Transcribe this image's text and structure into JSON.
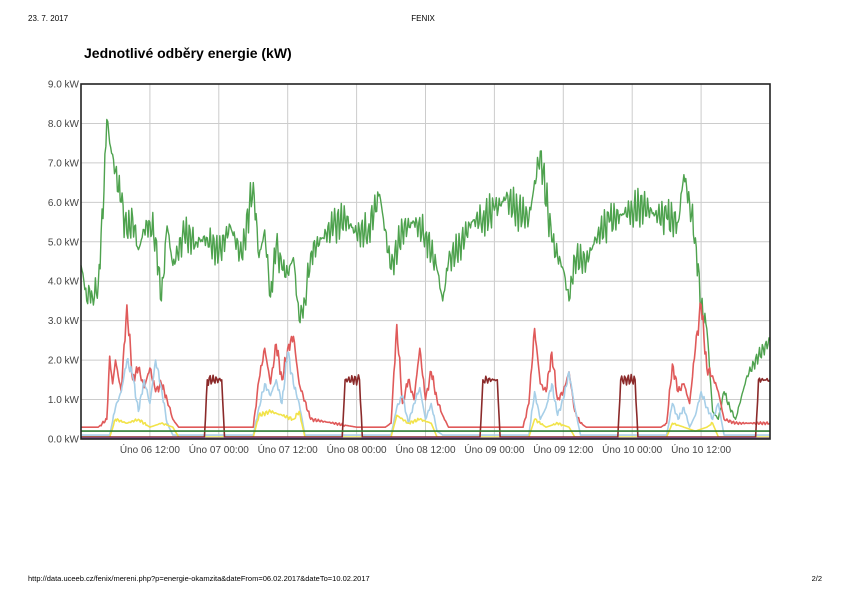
{
  "header": {
    "date": "23. 7. 2017",
    "title": "FENIX"
  },
  "footer": {
    "url": "http://data.uceeb.cz/fenix/mereni.php?p=energie-okamzita&dateFrom=06.02.2017&dateTo=10.02.2017",
    "page": "2/2"
  },
  "chart_data": {
    "type": "line",
    "title": "Jednotlivé odběry energie (kW)",
    "xlabel": "",
    "ylabel": "",
    "x_range_hours": [
      0,
      120
    ],
    "ylim": [
      0,
      9
    ],
    "y_ticks": [
      0,
      1,
      2,
      3,
      4,
      5,
      6,
      7,
      8,
      9
    ],
    "y_tick_labels": [
      "0.0 kW",
      "1.0 kW",
      "2.0 kW",
      "3.0 kW",
      "4.0 kW",
      "5.0 kW",
      "6.0 kW",
      "7.0 kW",
      "8.0 kW",
      "9.0 kW"
    ],
    "x_ticks": [
      {
        "x": 12,
        "label": "Úno 06 12:00"
      },
      {
        "x": 24,
        "label": "Úno 07 00:00"
      },
      {
        "x": 36,
        "label": "Úno 07 12:00"
      },
      {
        "x": 48,
        "label": "Úno 08 00:00"
      },
      {
        "x": 60,
        "label": "Úno 08 12:00"
      },
      {
        "x": 72,
        "label": "Úno 09 00:00"
      },
      {
        "x": 84,
        "label": "Úno 09 12:00"
      },
      {
        "x": 96,
        "label": "Úno 10 00:00"
      },
      {
        "x": 108,
        "label": "Úno 10 12:00"
      }
    ],
    "grid": true,
    "series": [
      {
        "color": "#4ea24e",
        "x": [
          0,
          0.5,
          1,
          1.5,
          2,
          3,
          4,
          4.5,
          5,
          6,
          7,
          8,
          9,
          10,
          11,
          12,
          13,
          14,
          15,
          16,
          18,
          20,
          22,
          24,
          26,
          28,
          30,
          31,
          32,
          33,
          34,
          35,
          36,
          37,
          38,
          39,
          40,
          42,
          44,
          46,
          48,
          50,
          52,
          54,
          56,
          58,
          60,
          62,
          63,
          64,
          66,
          68,
          70,
          72,
          74,
          76,
          78,
          80,
          82,
          84,
          85,
          86,
          88,
          90,
          92,
          94,
          96,
          98,
          100,
          102,
          104,
          105,
          106,
          107,
          108,
          109,
          110,
          111,
          112,
          113,
          114,
          116,
          118,
          120
        ],
        "y": [
          4.4,
          4.0,
          3.5,
          3.8,
          3.6,
          3.9,
          6.3,
          8.1,
          7.5,
          6.8,
          6.0,
          5.2,
          5.6,
          4.8,
          5.3,
          5.5,
          5.1,
          3.5,
          5.4,
          4.4,
          5.2,
          5.0,
          5.1,
          4.7,
          5.4,
          4.6,
          6.5,
          4.6,
          5.3,
          3.6,
          4.9,
          4.3,
          4.2,
          4.6,
          3.0,
          3.5,
          4.7,
          5.1,
          5.4,
          5.6,
          5.2,
          5.3,
          6.2,
          4.3,
          5.3,
          5.5,
          5.2,
          4.3,
          3.5,
          4.5,
          4.9,
          5.5,
          5.6,
          5.8,
          6.1,
          5.8,
          5.6,
          7.3,
          5.0,
          4.3,
          3.5,
          4.6,
          4.5,
          5.2,
          5.5,
          5.7,
          5.8,
          5.9,
          5.7,
          5.6,
          5.5,
          6.7,
          6.0,
          5.1,
          3.4,
          2.8,
          0.7,
          0.5,
          1.2,
          0.8,
          0.5,
          1.6,
          2.1,
          2.5
        ]
      },
      {
        "color": "#e05a5a",
        "x": [
          0,
          3,
          4.5,
          5,
          5.5,
          6,
          7,
          8,
          9,
          10,
          11,
          12,
          13,
          14,
          15,
          16,
          17,
          18,
          24,
          30,
          31,
          32,
          33,
          34,
          35,
          36,
          37,
          38,
          40,
          48,
          53,
          54,
          55,
          56,
          57,
          58,
          59,
          60,
          61,
          62,
          63,
          64,
          72,
          77,
          78,
          79,
          80,
          81,
          82,
          83,
          84,
          85,
          86,
          87,
          88,
          96,
          101,
          102,
          103,
          104,
          105,
          106,
          107,
          108,
          109,
          110,
          111,
          112,
          114,
          120
        ],
        "y": [
          0.3,
          0.3,
          0.5,
          2.1,
          1.4,
          2.0,
          1.2,
          3.4,
          1.5,
          1.8,
          1.3,
          1.8,
          1.2,
          1.4,
          1.0,
          0.5,
          0.3,
          0.3,
          0.3,
          0.3,
          1.5,
          2.3,
          1.4,
          2.4,
          1.5,
          2.3,
          2.6,
          1.4,
          0.5,
          0.3,
          0.3,
          0.4,
          2.9,
          0.9,
          1.5,
          1.0,
          2.3,
          1.0,
          1.7,
          1.0,
          0.6,
          0.3,
          0.3,
          0.3,
          0.9,
          2.8,
          1.4,
          1.2,
          2.2,
          1.0,
          1.2,
          1.7,
          0.7,
          0.4,
          0.3,
          0.3,
          0.3,
          0.4,
          1.9,
          1.2,
          1.4,
          0.9,
          2.3,
          3.4,
          1.8,
          1.6,
          1.2,
          0.5,
          0.4,
          0.4
        ]
      },
      {
        "color": "#a7cfe8",
        "x": [
          0,
          5,
          6,
          7,
          8,
          9,
          10,
          11,
          12,
          13,
          14,
          15,
          16,
          17,
          18,
          30,
          31,
          32,
          33,
          34,
          35,
          36,
          37,
          38,
          39,
          48,
          54,
          55,
          56,
          57,
          58,
          59,
          60,
          61,
          62,
          63,
          72,
          78,
          79,
          80,
          81,
          82,
          83,
          84,
          85,
          86,
          87,
          88,
          96,
          102,
          103,
          104,
          105,
          106,
          107,
          108,
          109,
          110,
          111,
          112,
          120
        ],
        "y": [
          0.1,
          0.1,
          0.8,
          1.2,
          2.0,
          1.6,
          0.7,
          1.5,
          0.9,
          2.0,
          1.3,
          0.4,
          0.1,
          0.1,
          0.1,
          0.1,
          0.8,
          1.4,
          1.1,
          1.5,
          0.9,
          2.2,
          1.4,
          0.9,
          0.1,
          0.1,
          0.1,
          0.8,
          1.1,
          0.4,
          0.9,
          1.3,
          0.5,
          0.9,
          0.2,
          0.1,
          0.1,
          0.1,
          1.2,
          0.5,
          0.8,
          1.4,
          0.6,
          1.0,
          1.7,
          0.8,
          0.1,
          0.1,
          0.1,
          0.1,
          0.9,
          0.5,
          0.8,
          0.3,
          0.6,
          1.2,
          0.8,
          0.5,
          0.9,
          0.1,
          0.1
        ]
      },
      {
        "color": "#f2e34a",
        "x": [
          0,
          5,
          6,
          8,
          10,
          12,
          14,
          16,
          17,
          30,
          31,
          33,
          35,
          37,
          38,
          39,
          54,
          55,
          57,
          59,
          61,
          62,
          78,
          79,
          81,
          83,
          85,
          86,
          102,
          103,
          105,
          107,
          109,
          110,
          111,
          120
        ],
        "y": [
          0.05,
          0.05,
          0.5,
          0.4,
          0.5,
          0.3,
          0.4,
          0.3,
          0.05,
          0.05,
          0.6,
          0.7,
          0.6,
          0.5,
          0.7,
          0.05,
          0.05,
          0.6,
          0.4,
          0.5,
          0.4,
          0.05,
          0.05,
          0.5,
          0.3,
          0.4,
          0.3,
          0.05,
          0.05,
          0.4,
          0.3,
          0.2,
          0.3,
          0.4,
          0.05,
          0.05
        ]
      },
      {
        "color": "#8b2a2a",
        "x": [
          0,
          21.5,
          22,
          24.5,
          25,
          45.5,
          46,
          48.5,
          49,
          69.5,
          70,
          72.5,
          73,
          93.5,
          94,
          96.5,
          97,
          117.5,
          118,
          120
        ],
        "y": [
          0.05,
          0.05,
          1.5,
          1.5,
          0.05,
          0.05,
          1.5,
          1.5,
          0.05,
          0.05,
          1.5,
          1.5,
          0.05,
          0.05,
          1.5,
          1.5,
          0.05,
          0.05,
          1.5,
          1.5
        ]
      },
      {
        "color": "#2e7d32",
        "x": [
          0,
          120
        ],
        "y": [
          0.2,
          0.2
        ]
      },
      {
        "color": "#7b5ea7",
        "x": [
          0,
          120
        ],
        "y": [
          0.02,
          0.02
        ]
      }
    ]
  }
}
